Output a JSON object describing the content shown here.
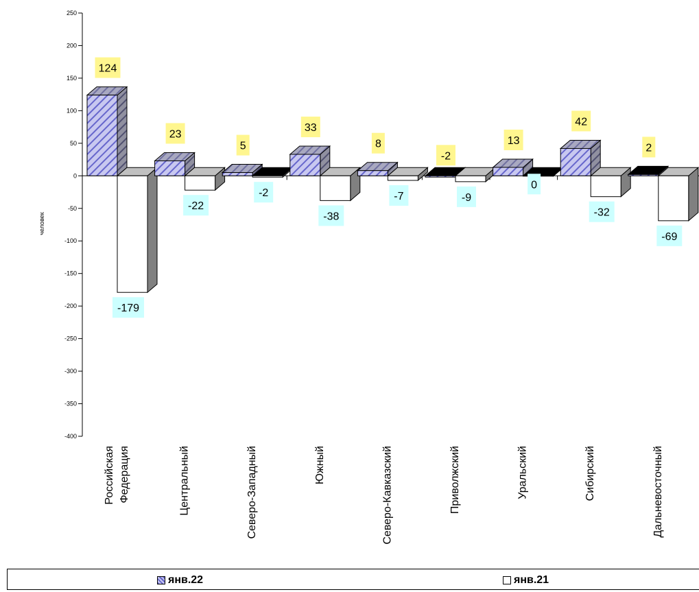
{
  "chart_data": {
    "type": "bar",
    "title": "",
    "xlabel": "",
    "ylabel": "человек",
    "ylim": [
      -400,
      250
    ],
    "yticks": [
      250,
      200,
      150,
      100,
      50,
      0,
      -50,
      -100,
      -150,
      -200,
      -250,
      -300,
      -350,
      -400
    ],
    "categories": [
      "Российская Федерация",
      "Центральный",
      "Северо-Западный",
      "Южный",
      "Северо-Кавказский",
      "Приволжский",
      "Уральский",
      "Сибирский",
      "Дальневосточный"
    ],
    "category_lines": [
      [
        "Российская",
        "Федерация"
      ],
      [
        "Центральный"
      ],
      [
        "Северо-Западный"
      ],
      [
        "Южный"
      ],
      [
        "Северо-Кавказский"
      ],
      [
        "Приволжский"
      ],
      [
        "Уральский"
      ],
      [
        "Сибирский"
      ],
      [
        "Дальневосточный"
      ]
    ],
    "series": [
      {
        "name": "янв.22",
        "values": [
          124,
          23,
          5,
          33,
          8,
          -2,
          13,
          42,
          2
        ],
        "fill": "hatched-blue",
        "label_bg": "#fff68f"
      },
      {
        "name": "янв.21",
        "values": [
          -179,
          -22,
          -2,
          -38,
          -7,
          -9,
          0,
          -32,
          -69
        ],
        "fill": "#ffffff",
        "label_bg": "#ccffff"
      }
    ],
    "legend_position": "bottom",
    "grid": false
  },
  "legend": {
    "items": [
      {
        "label": "янв.22"
      },
      {
        "label": "янв.21"
      }
    ]
  }
}
